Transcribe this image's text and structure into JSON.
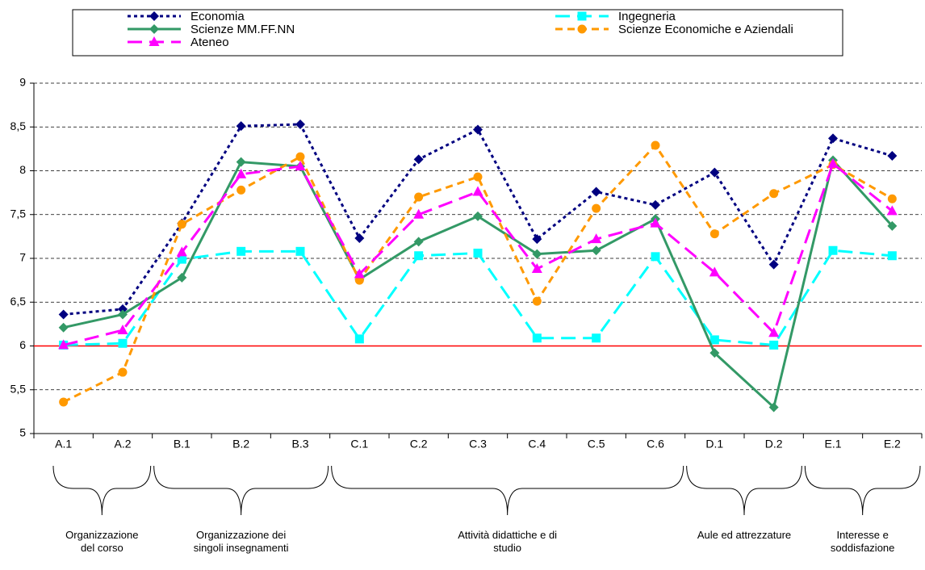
{
  "chart_data": {
    "type": "line",
    "groups": [
      {
        "label": "Organizzazione del corso",
        "categories": [
          "A.1",
          "A.2"
        ]
      },
      {
        "label": "Organizzazione dei singoli insegnamenti",
        "categories": [
          "B.1",
          "B.2",
          "B.3"
        ]
      },
      {
        "label": "Attività didattiche e di studio",
        "categories": [
          "C.1",
          "C.2",
          "C.3",
          "C.4",
          "C.5",
          "C.6"
        ]
      },
      {
        "label": "Aule ed attrezzature",
        "categories": [
          "D.1",
          "D.2"
        ]
      },
      {
        "label": "Interesse e soddisfazione",
        "categories": [
          "E.1",
          "E.2"
        ]
      }
    ],
    "series": [
      {
        "name": "Economia",
        "color": "#000080",
        "line_style": "dotted",
        "marker": "diamond",
        "values": [
          6.36,
          6.42,
          7.4,
          8.51,
          8.53,
          7.23,
          8.13,
          8.47,
          7.22,
          7.76,
          7.61,
          7.98,
          6.93,
          8.37,
          8.17
        ]
      },
      {
        "name": "Ingegneria",
        "color": "#00FFFF",
        "line_style": "long-dash",
        "marker": "square",
        "values": [
          6.01,
          6.03,
          6.99,
          7.08,
          7.08,
          6.08,
          7.03,
          7.06,
          6.09,
          6.09,
          7.02,
          6.07,
          6.01,
          7.09,
          7.03
        ]
      },
      {
        "name": "Scienze MM.FF.NN",
        "color": "#339966",
        "line_style": "solid",
        "marker": "diamond",
        "values": [
          6.21,
          6.36,
          6.78,
          8.1,
          8.05,
          6.76,
          7.19,
          7.48,
          7.05,
          7.09,
          7.45,
          5.92,
          5.3,
          8.12,
          7.37
        ]
      },
      {
        "name": "Scienze Economiche e Aziendali",
        "color": "#FF9900",
        "line_style": "dashed",
        "marker": "circle",
        "values": [
          5.36,
          5.7,
          7.39,
          7.78,
          8.16,
          6.75,
          7.7,
          7.93,
          6.51,
          7.57,
          8.29,
          7.28,
          7.74,
          8.07,
          7.68
        ]
      },
      {
        "name": "Ateneo",
        "color": "#FF00FF",
        "line_style": "long-dash",
        "marker": "triangle",
        "values": [
          6.01,
          6.18,
          7.07,
          7.96,
          8.05,
          6.82,
          7.5,
          7.76,
          6.88,
          7.22,
          7.4,
          6.84,
          6.15,
          8.08,
          7.54
        ]
      }
    ],
    "reference_line": {
      "value": 6,
      "color": "#FF0000"
    },
    "ylim": [
      5,
      9
    ],
    "yticks": [
      5,
      {
        "value": 5.5,
        "label": "5,5"
      },
      6,
      {
        "value": 6.5,
        "label": "6,5"
      },
      7,
      {
        "value": 7.5,
        "label": "7,5"
      },
      8,
      {
        "value": 8.5,
        "label": "8,5"
      },
      9
    ],
    "grid": true
  }
}
